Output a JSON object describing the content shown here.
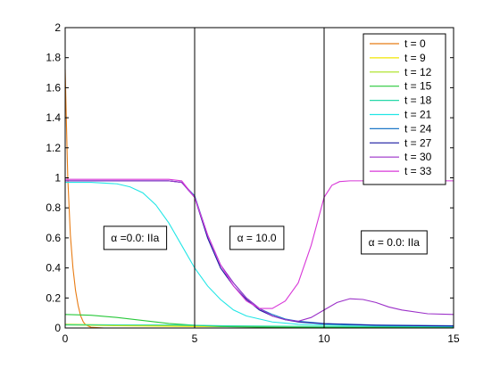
{
  "chart_data": {
    "type": "line",
    "title": "",
    "xlabel": "",
    "ylabel": "",
    "xlim": [
      0,
      15
    ],
    "ylim": [
      0,
      2
    ],
    "x_ticks": [
      "0",
      "5",
      "10",
      "15"
    ],
    "y_ticks": [
      "0",
      "0.2",
      "0.4",
      "0.6",
      "0.8",
      "1",
      "1.2",
      "1.4",
      "1.6",
      "1.8",
      "2"
    ],
    "grid": false,
    "legend_position": "top-right",
    "vertical_lines": [
      5,
      10
    ],
    "annotations": [
      {
        "text": "α =0.0: IIa",
        "x": 2.7,
        "y": 0.6
      },
      {
        "text": "α = 10.0",
        "x": 7.4,
        "y": 0.6
      },
      {
        "text": "α = 0.0: IIa",
        "x": 12.7,
        "y": 0.57
      }
    ],
    "series": [
      {
        "name": "t = 0",
        "color": "#e87c14",
        "x": [
          0,
          0.05,
          0.1,
          0.2,
          0.3,
          0.4,
          0.5,
          0.6,
          0.7,
          0.8,
          1.0,
          1.5,
          3,
          15
        ],
        "y": [
          1.72,
          1.35,
          1.0,
          0.62,
          0.4,
          0.25,
          0.15,
          0.08,
          0.04,
          0.02,
          0.005,
          0.0,
          0.0,
          0.0
        ]
      },
      {
        "name": "t = 9",
        "color": "#f2e600",
        "x": [
          0,
          2,
          5,
          8,
          10,
          15
        ],
        "y": [
          0.02,
          0.015,
          0.01,
          0.01,
          0.005,
          0.005
        ]
      },
      {
        "name": "t = 12",
        "color": "#a8e01a",
        "x": [
          0,
          2,
          5,
          8,
          10,
          15
        ],
        "y": [
          0.025,
          0.02,
          0.015,
          0.01,
          0.01,
          0.005
        ]
      },
      {
        "name": "t = 15",
        "color": "#28c83a",
        "x": [
          0,
          1,
          2,
          3,
          4,
          5,
          6,
          8,
          10,
          15
        ],
        "y": [
          0.09,
          0.085,
          0.07,
          0.05,
          0.03,
          0.018,
          0.01,
          0.005,
          0.003,
          0.002
        ]
      },
      {
        "name": "t = 18",
        "color": "#26d8a8",
        "x": [
          0,
          2,
          4,
          5,
          6,
          8,
          10,
          15
        ],
        "y": [
          0.02,
          0.02,
          0.02,
          0.018,
          0.015,
          0.012,
          0.01,
          0.008
        ]
      },
      {
        "name": "t = 21",
        "color": "#22e6e6",
        "x": [
          0,
          1,
          2,
          2.5,
          3,
          3.5,
          4,
          4.5,
          5,
          5.5,
          6,
          6.5,
          7,
          8,
          9,
          10,
          15
        ],
        "y": [
          0.97,
          0.97,
          0.96,
          0.94,
          0.9,
          0.82,
          0.7,
          0.55,
          0.4,
          0.28,
          0.19,
          0.12,
          0.08,
          0.04,
          0.025,
          0.02,
          0.01
        ]
      },
      {
        "name": "t = 24",
        "color": "#1f78c8",
        "x": [
          0,
          4,
          4.5,
          5,
          5.5,
          6,
          6.5,
          7,
          7.5,
          8,
          8.5,
          9,
          10,
          12,
          15
        ],
        "y": [
          0.98,
          0.98,
          0.97,
          0.88,
          0.62,
          0.42,
          0.3,
          0.2,
          0.13,
          0.09,
          0.06,
          0.045,
          0.03,
          0.02,
          0.015
        ]
      },
      {
        "name": "t = 27",
        "color": "#1a1aa0",
        "x": [
          0,
          4,
          4.5,
          5,
          5.5,
          6,
          6.5,
          7,
          7.5,
          8,
          8.5,
          9,
          10,
          12,
          15
        ],
        "y": [
          0.98,
          0.98,
          0.97,
          0.87,
          0.6,
          0.4,
          0.28,
          0.19,
          0.12,
          0.08,
          0.055,
          0.04,
          0.028,
          0.018,
          0.013
        ]
      },
      {
        "name": "t = 30",
        "color": "#9b2fc8",
        "x": [
          0,
          4,
          4.5,
          5,
          5.5,
          6,
          6.5,
          7,
          7.5,
          8,
          8.5,
          9,
          9.5,
          10,
          10.5,
          11,
          11.5,
          12,
          12.5,
          13,
          14,
          15
        ],
        "y": [
          0.98,
          0.98,
          0.97,
          0.87,
          0.62,
          0.42,
          0.3,
          0.2,
          0.13,
          0.08,
          0.055,
          0.045,
          0.07,
          0.12,
          0.17,
          0.195,
          0.19,
          0.17,
          0.14,
          0.12,
          0.095,
          0.09
        ]
      },
      {
        "name": "t = 33",
        "color": "#d838d8",
        "x": [
          0,
          4,
          4.5,
          5,
          5.5,
          6,
          6.5,
          7,
          7.5,
          8,
          8.5,
          9,
          9.5,
          10,
          10.3,
          10.6,
          11,
          12,
          13,
          15
        ],
        "y": [
          0.99,
          0.99,
          0.98,
          0.87,
          0.62,
          0.42,
          0.28,
          0.18,
          0.13,
          0.13,
          0.18,
          0.3,
          0.55,
          0.87,
          0.95,
          0.975,
          0.98,
          0.98,
          0.98,
          0.98
        ]
      }
    ]
  }
}
